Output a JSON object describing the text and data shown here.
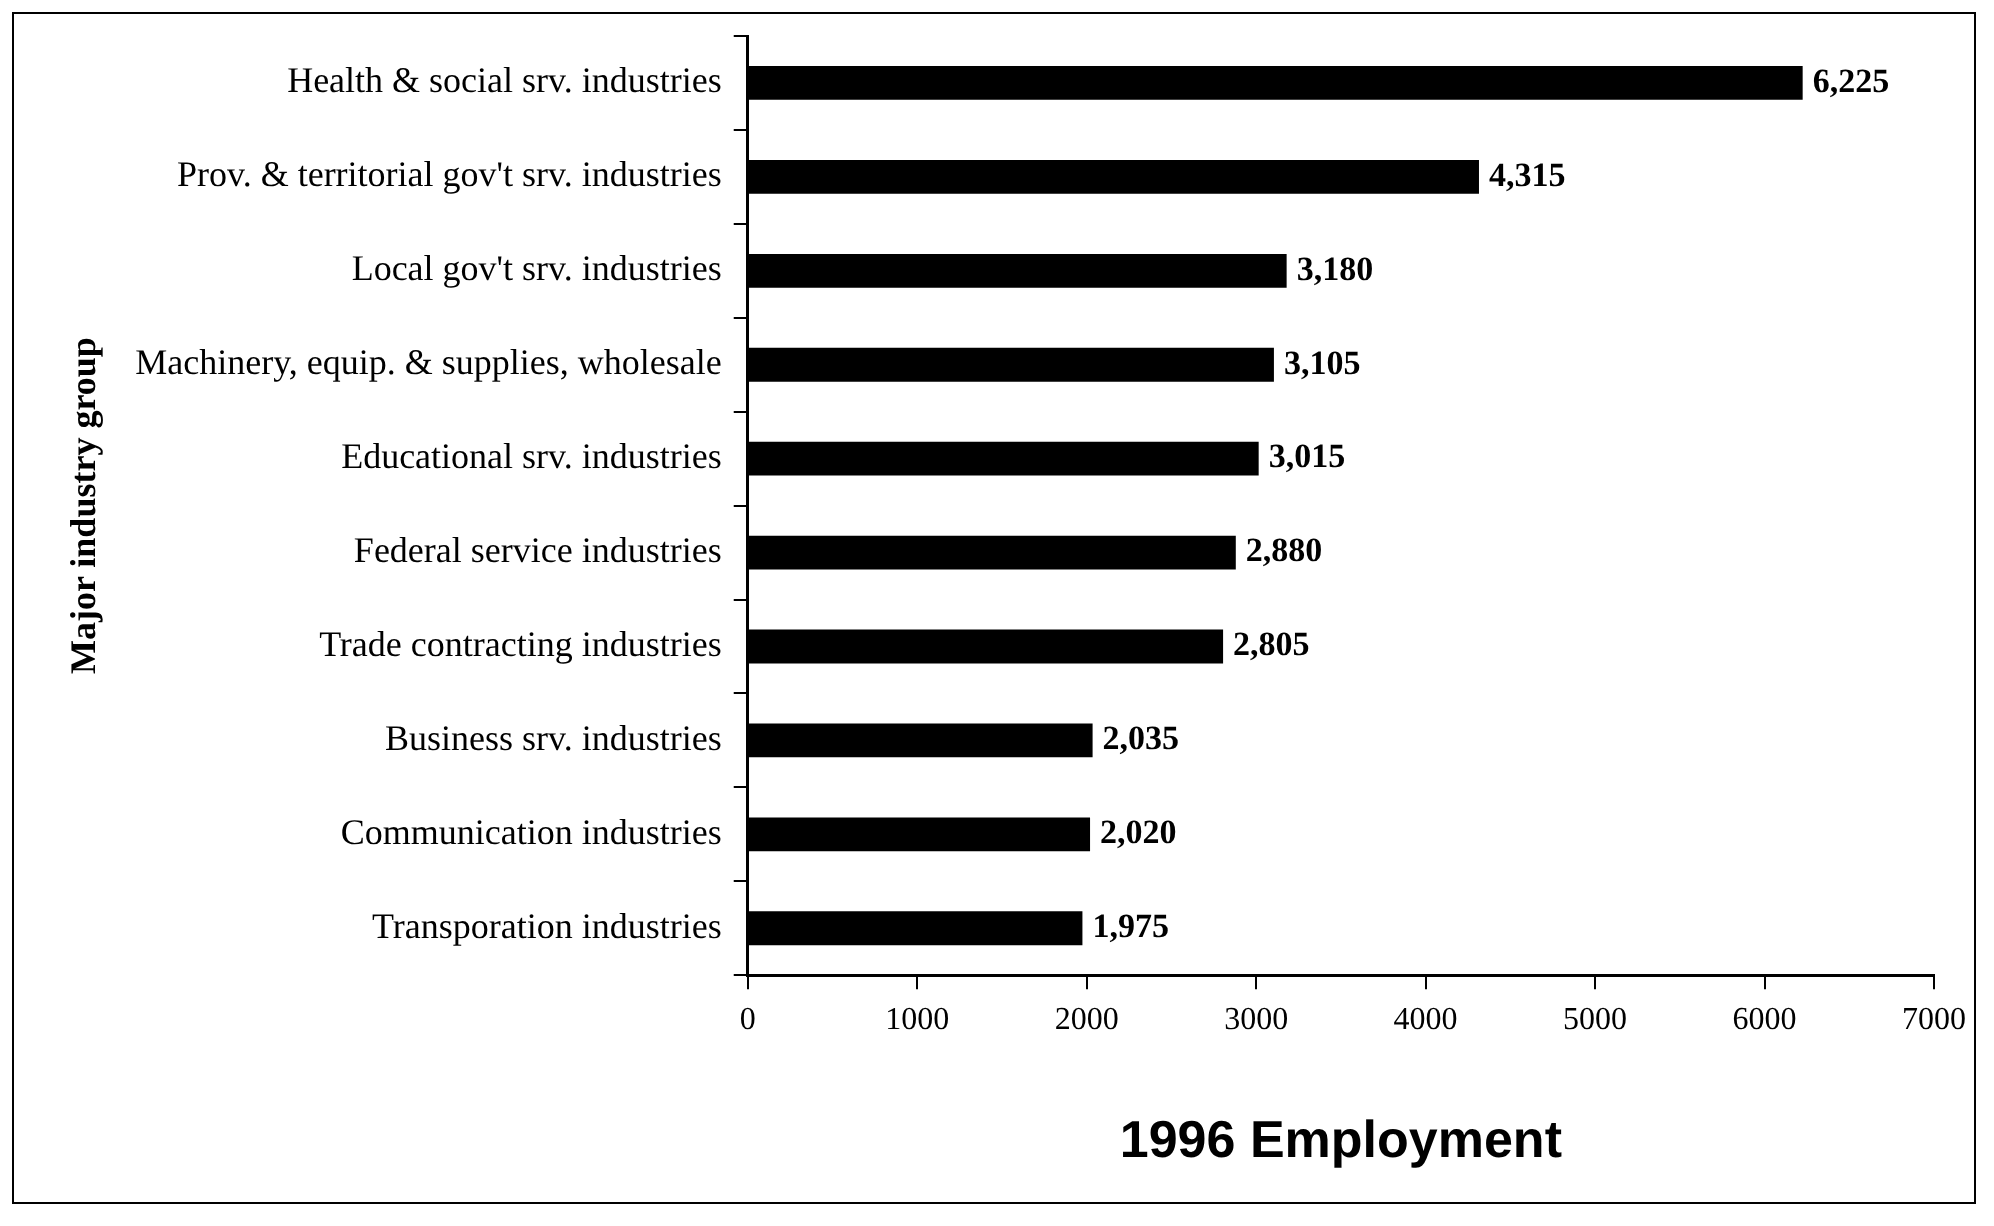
{
  "chart_data": {
    "type": "bar",
    "orientation": "horizontal",
    "xlabel": "1996 Employment",
    "ylabel": "Major industry group",
    "categories": [
      "Health & social srv. industries",
      "Prov. & territorial gov't srv. industries",
      "Local gov't srv. industries",
      "Machinery, equip. & supplies, wholesale",
      "Educational srv. industries",
      "Federal service industries",
      "Trade contracting industries",
      "Business srv. industries",
      "Communication industries",
      "Transporation industries"
    ],
    "values": [
      6225,
      4315,
      3180,
      3105,
      3015,
      2880,
      2805,
      2035,
      2020,
      1975
    ],
    "value_labels": [
      "6,225",
      "4,315",
      "3,180",
      "3,105",
      "3,015",
      "2,880",
      "2,805",
      "2,035",
      "2,020",
      "1,975"
    ],
    "color": "#000000",
    "xlim": [
      0,
      7000
    ],
    "xticks": [
      0,
      1000,
      2000,
      3000,
      4000,
      5000,
      6000,
      7000
    ],
    "grid": false,
    "legend": false
  }
}
